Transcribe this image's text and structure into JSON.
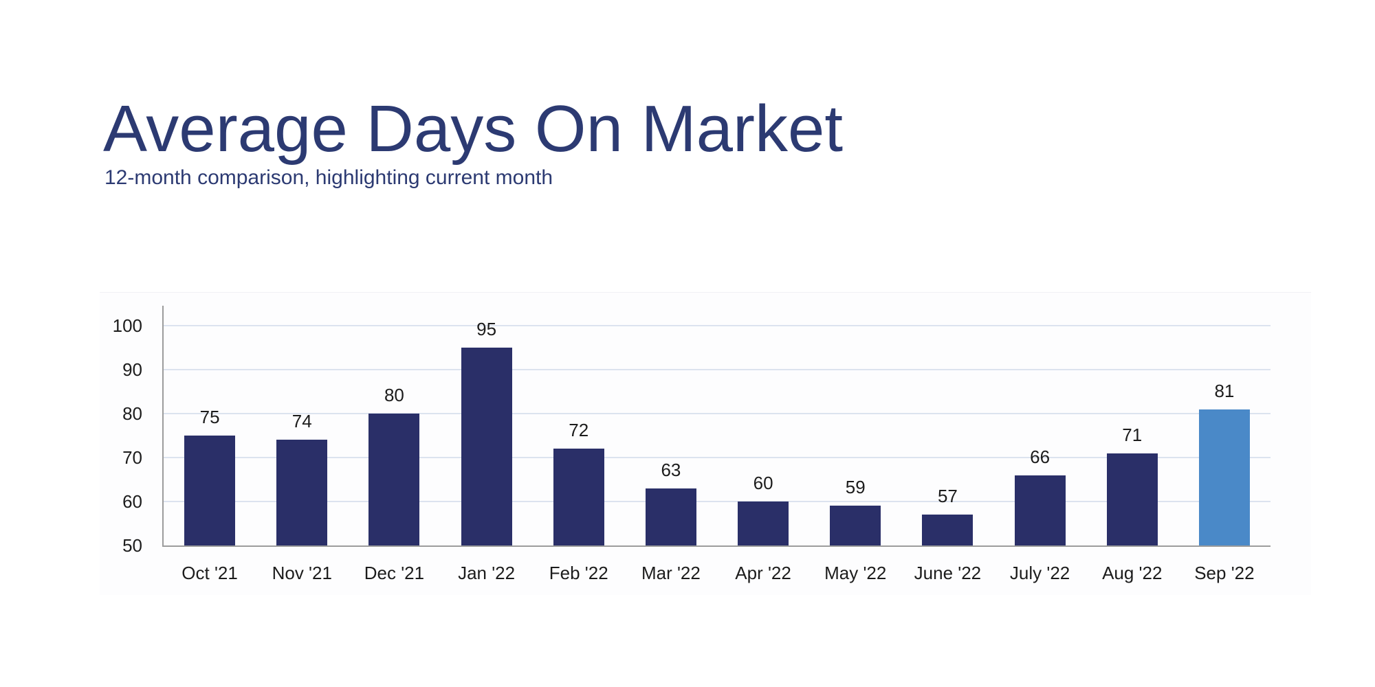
{
  "page": {
    "title": "Average Days On Market",
    "subtitle": "12-month comparison, highlighting current month"
  },
  "colors": {
    "title_text": "#2c3a72",
    "subtitle_text": "#2c3a72",
    "label_text": "#1c1c1c",
    "bar": "#2a2f68",
    "bar_highlight": "#4a89c8",
    "gridline": "#dce3ef",
    "axis_line": "#9c9c9c"
  },
  "chart_data": {
    "type": "bar",
    "title": "Average Days On Market",
    "subtitle": "12-month comparison, highlighting current month",
    "categories": [
      "Oct '21",
      "Nov '21",
      "Dec '21",
      "Jan '22",
      "Feb '22",
      "Mar '22",
      "Apr '22",
      "May '22",
      "June '22",
      "July '22",
      "Aug '22",
      "Sep '22"
    ],
    "values": [
      75,
      74,
      80,
      95,
      72,
      63,
      60,
      59,
      57,
      66,
      71,
      81
    ],
    "highlight_index": 11,
    "highlighted_category": "Sep '22",
    "highlighted_value": 81,
    "xlabel": "",
    "ylabel": "",
    "ylim": [
      50,
      105
    ],
    "yticks": [
      50,
      60,
      70,
      80,
      90,
      100
    ],
    "grid": "horizontal",
    "data_labels": true,
    "legend": "none"
  }
}
